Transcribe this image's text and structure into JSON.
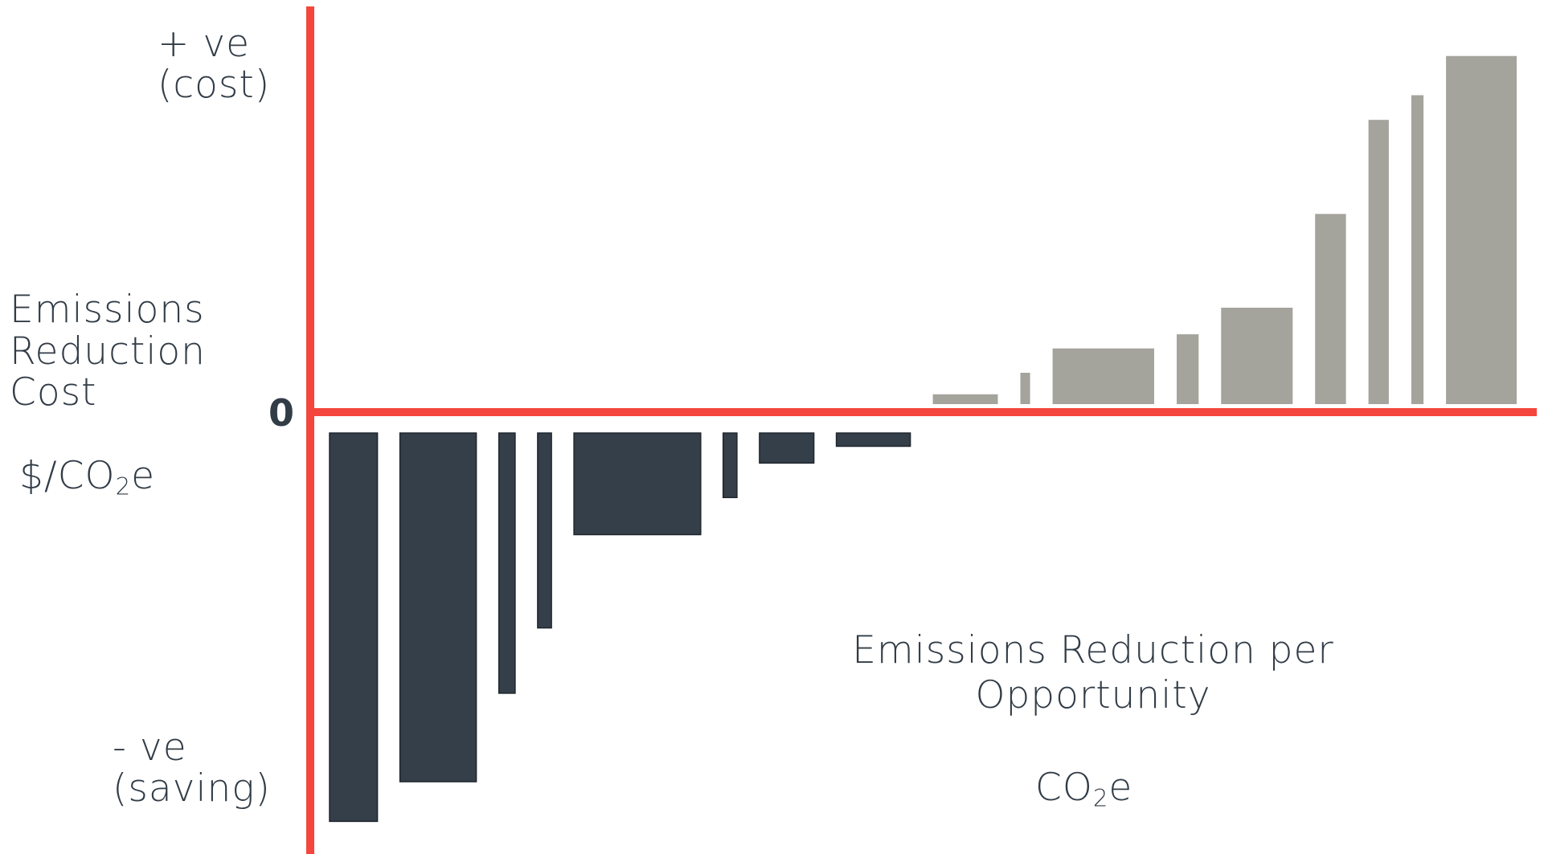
{
  "chart_data": {
    "type": "bar",
    "subtype": "marginal-abatement-cost-curve",
    "y_axis": {
      "title": [
        "Emissions",
        "Reduction",
        "Cost"
      ],
      "unit": {
        "prefix": "$/CO",
        "sub": "2",
        "suffix": "e"
      },
      "positive_label": [
        "+ ve",
        "(cost)"
      ],
      "negative_label": [
        "- ve",
        "(saving)"
      ],
      "zero_label": "0",
      "ylim": [
        -1,
        1
      ]
    },
    "x_axis": {
      "title": [
        "Emissions Reduction per",
        "Opportunity"
      ],
      "unit": {
        "prefix": "CO",
        "sub": "2",
        "suffix": "e"
      }
    },
    "axis_color": "#f4463c",
    "saving_color": "#343f4a",
    "cost_color": "#a4a39c",
    "bars": [
      {
        "width": 0.059,
        "value": -0.879
      },
      {
        "width": 0.094,
        "value": -0.789
      },
      {
        "width": 0.02,
        "value": -0.589
      },
      {
        "width": 0.017,
        "value": -0.441
      },
      {
        "width": 0.156,
        "value": -0.23
      },
      {
        "width": 0.017,
        "value": -0.146
      },
      {
        "width": 0.067,
        "value": -0.068
      },
      {
        "width": 0.091,
        "value": -0.03
      },
      {
        "width": 0.08,
        "value": 0.025
      },
      {
        "width": 0.012,
        "value": 0.08
      },
      {
        "width": 0.125,
        "value": 0.142
      },
      {
        "width": 0.027,
        "value": 0.178
      },
      {
        "width": 0.088,
        "value": 0.246
      },
      {
        "width": 0.038,
        "value": 0.485
      },
      {
        "width": 0.025,
        "value": 0.725
      },
      {
        "width": 0.015,
        "value": 0.788
      },
      {
        "width": 0.087,
        "value": 0.888
      }
    ]
  }
}
